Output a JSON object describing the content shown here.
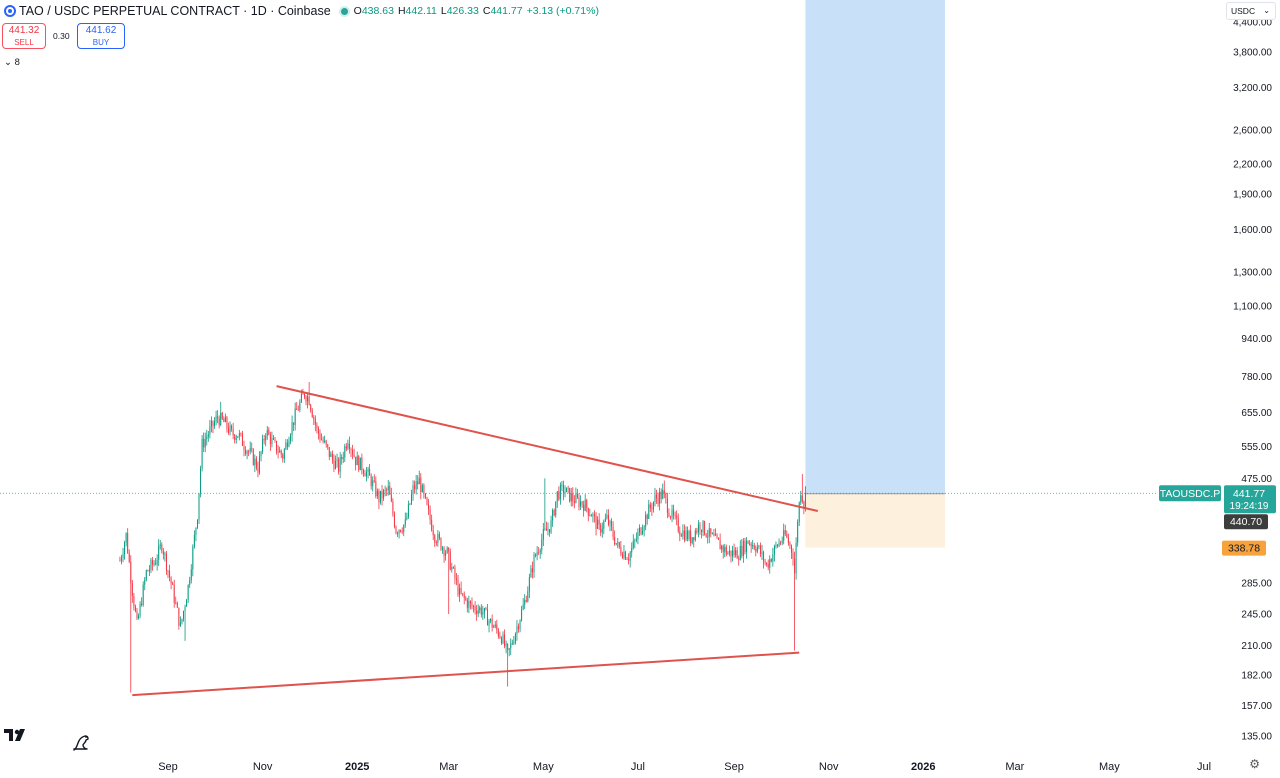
{
  "header": {
    "title": "TAO / USDC PERPETUAL CONTRACT · 1D · Coinbase",
    "ohlc": {
      "o_label": "O",
      "o": "438.63",
      "h_label": "H",
      "h": "442.11",
      "l_label": "L",
      "l": "426.33",
      "c_label": "C",
      "c": "441.77",
      "change": "+3.13 (+0.71%)"
    }
  },
  "trade": {
    "sell_price": "441.32",
    "sell_label": "SELL",
    "spread": "0.30",
    "buy_price": "441.62",
    "buy_label": "BUY"
  },
  "indicators_toggle": "8",
  "currency": "USDC",
  "colors": {
    "up": "#089981",
    "down": "#f23645",
    "trendline": "#e0524c",
    "target_zone": "#c9e0f9",
    "stop_zone": "#fdf0dc",
    "price_tag": "#26a69a",
    "stop_tag": "#f7a23b"
  },
  "icons": [
    "tradingview-logo-icon",
    "dino-icon",
    "gear-icon",
    "symbol-icon",
    "chevron-down-icon"
  ],
  "chart_data": {
    "type": "candlestick",
    "scale": "log",
    "ylim": [
      125,
      4900
    ],
    "y_ticks": [
      "4,400.00",
      "3,800.00",
      "3,200.00",
      "2,600.00",
      "2,200.00",
      "1,900.00",
      "1,600.00",
      "1,300.00",
      "1,100.00",
      "940.00",
      "780.00",
      "655.00",
      "555.00",
      "475.00",
      "285.00",
      "245.00",
      "210.00",
      "182.00",
      "157.00",
      "135.00"
    ],
    "x_ticks": [
      "Sep",
      "Nov",
      "2025",
      "Mar",
      "May",
      "Jul",
      "Sep",
      "Nov",
      "2026",
      "Mar",
      "May",
      "Jul"
    ],
    "x_tick_dates": [
      "2024-09-01",
      "2024-11-01",
      "2025-01-01",
      "2025-03-01",
      "2025-05-01",
      "2025-07-01",
      "2025-09-01",
      "2025-11-01",
      "2026-01-01",
      "2026-03-01",
      "2026-05-01",
      "2026-07-01"
    ],
    "current_price": {
      "symbol": "TAOUSDC.P",
      "value": "441.77",
      "countdown": "19:24:19"
    },
    "position_entry": "440.70",
    "position_stop": "338.78",
    "position_target_top": 4900,
    "position_start": "2025-10-17",
    "position_end": "2026-01-15",
    "trendlines": [
      {
        "name": "resistance",
        "from": [
          "2024-11-10",
          745
        ],
        "to": [
          "2025-10-25",
          405
        ]
      },
      {
        "name": "support",
        "from": [
          "2024-08-09",
          165
        ],
        "to": [
          "2025-10-13",
          203
        ]
      }
    ],
    "price_path": [
      [
        "2024-08-01",
        318
      ],
      [
        "2024-08-05",
        360
      ],
      [
        "2024-08-09",
        275
      ],
      [
        "2024-08-12",
        232
      ],
      [
        "2024-08-18",
        300
      ],
      [
        "2024-08-24",
        318
      ],
      [
        "2024-08-28",
        345
      ],
      [
        "2024-09-03",
        285
      ],
      [
        "2024-09-09",
        230
      ],
      [
        "2024-09-14",
        280
      ],
      [
        "2024-09-20",
        400
      ],
      [
        "2024-09-23",
        560
      ],
      [
        "2024-09-28",
        600
      ],
      [
        "2024-10-03",
        640
      ],
      [
        "2024-10-08",
        620
      ],
      [
        "2024-10-12",
        590
      ],
      [
        "2024-10-16",
        590
      ],
      [
        "2024-10-20",
        560
      ],
      [
        "2024-10-25",
        530
      ],
      [
        "2024-10-29",
        500
      ],
      [
        "2024-11-03",
        600
      ],
      [
        "2024-11-08",
        560
      ],
      [
        "2024-11-14",
        530
      ],
      [
        "2024-11-18",
        590
      ],
      [
        "2024-11-23",
        660
      ],
      [
        "2024-11-28",
        720
      ],
      [
        "2024-12-01",
        700
      ],
      [
        "2024-12-06",
        600
      ],
      [
        "2024-12-11",
        560
      ],
      [
        "2024-12-16",
        520
      ],
      [
        "2024-12-20",
        500
      ],
      [
        "2024-12-26",
        580
      ],
      [
        "2024-12-31",
        520
      ],
      [
        "2025-01-05",
        500
      ],
      [
        "2025-01-10",
        470
      ],
      [
        "2025-01-15",
        430
      ],
      [
        "2025-01-21",
        450
      ],
      [
        "2025-01-26",
        370
      ],
      [
        "2025-02-01",
        380
      ],
      [
        "2025-02-06",
        450
      ],
      [
        "2025-02-10",
        470
      ],
      [
        "2025-02-14",
        420
      ],
      [
        "2025-02-20",
        360
      ],
      [
        "2025-02-28",
        330
      ],
      [
        "2025-03-08",
        270
      ],
      [
        "2025-03-15",
        255
      ],
      [
        "2025-03-22",
        250
      ],
      [
        "2025-03-28",
        235
      ],
      [
        "2025-04-04",
        220
      ],
      [
        "2025-04-08",
        200
      ],
      [
        "2025-04-13",
        225
      ],
      [
        "2025-04-19",
        260
      ],
      [
        "2025-04-25",
        320
      ],
      [
        "2025-05-01",
        360
      ],
      [
        "2025-05-06",
        380
      ],
      [
        "2025-05-10",
        440
      ],
      [
        "2025-05-14",
        450
      ],
      [
        "2025-05-20",
        430
      ],
      [
        "2025-05-27",
        420
      ],
      [
        "2025-06-01",
        400
      ],
      [
        "2025-06-06",
        370
      ],
      [
        "2025-06-11",
        390
      ],
      [
        "2025-06-18",
        340
      ],
      [
        "2025-06-25",
        325
      ],
      [
        "2025-07-01",
        360
      ],
      [
        "2025-07-07",
        400
      ],
      [
        "2025-07-12",
        430
      ],
      [
        "2025-07-17",
        440
      ],
      [
        "2025-07-22",
        400
      ],
      [
        "2025-07-28",
        370
      ],
      [
        "2025-08-04",
        355
      ],
      [
        "2025-08-10",
        380
      ],
      [
        "2025-08-16",
        360
      ],
      [
        "2025-08-22",
        345
      ],
      [
        "2025-08-28",
        330
      ],
      [
        "2025-09-04",
        330
      ],
      [
        "2025-09-10",
        350
      ],
      [
        "2025-09-16",
        340
      ],
      [
        "2025-09-22",
        310
      ],
      [
        "2025-09-28",
        340
      ],
      [
        "2025-10-04",
        360
      ],
      [
        "2025-10-09",
        330
      ],
      [
        "2025-10-10",
        300
      ],
      [
        "2025-10-12",
        390
      ],
      [
        "2025-10-14",
        450
      ],
      [
        "2025-10-16",
        420
      ],
      [
        "2025-10-17",
        441.77
      ]
    ],
    "wick_extremes": [
      [
        "2024-08-08",
        167,
        "low"
      ],
      [
        "2024-09-12",
        215,
        "low"
      ],
      [
        "2024-10-05",
        690,
        "high"
      ],
      [
        "2024-12-01",
        760,
        "high"
      ],
      [
        "2025-03-01",
        245,
        "low"
      ],
      [
        "2025-04-08",
        172,
        "low"
      ],
      [
        "2025-05-02",
        475,
        "high"
      ],
      [
        "2025-07-18",
        470,
        "high"
      ],
      [
        "2025-10-10",
        205,
        "low"
      ],
      [
        "2025-10-15",
        485,
        "high"
      ]
    ]
  }
}
